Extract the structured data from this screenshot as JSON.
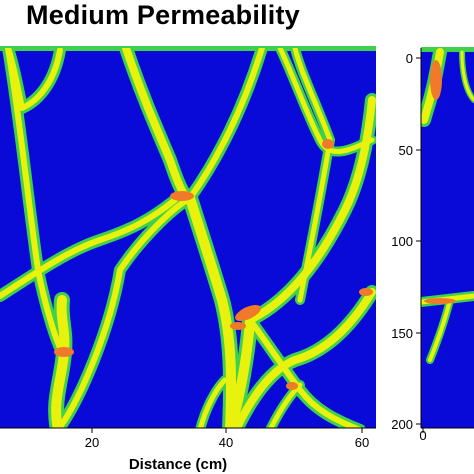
{
  "figure": {
    "title": "Medium Permeability",
    "colors": {
      "matrix": "#0a0ad8",
      "fracture_outline": "#3fd14e",
      "fracture_fill": "#e9f20c",
      "hotspot": "#f07a2a"
    }
  },
  "left_panel": {
    "x_ticks": [
      "20",
      "40",
      "60"
    ],
    "x_axis_title": "Distance (cm)"
  },
  "right_panel": {
    "y_ticks": [
      "0",
      "50",
      "100",
      "150",
      "200"
    ],
    "x_ticks": [
      "0"
    ]
  }
}
